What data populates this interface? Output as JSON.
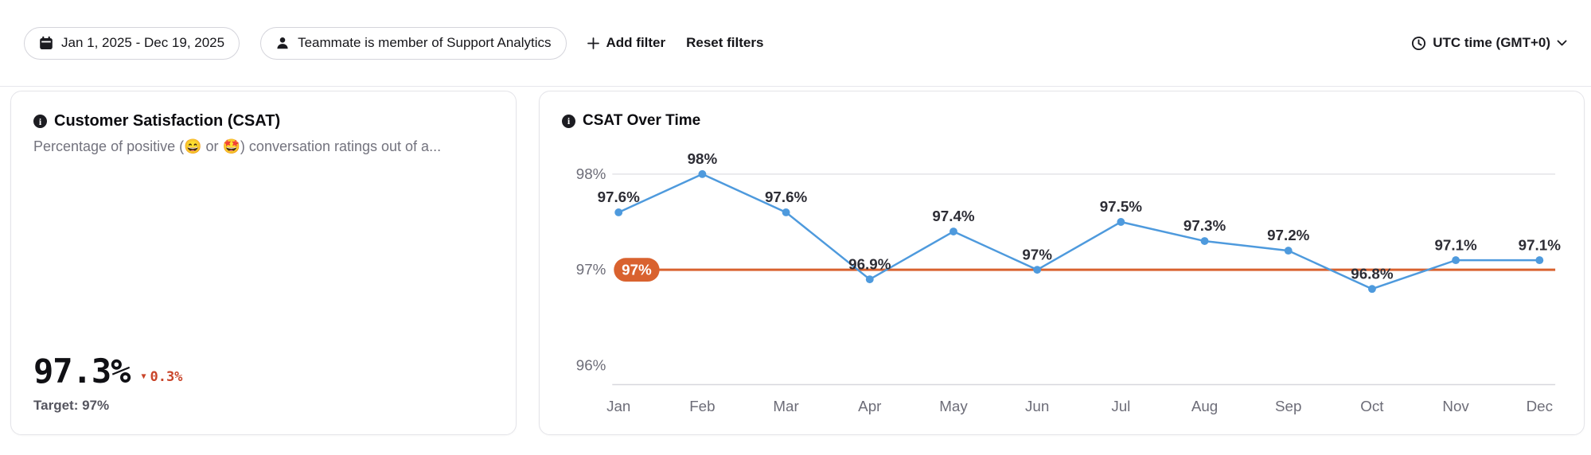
{
  "toolbar": {
    "date_range": "Jan 1, 2025 - Dec 19, 2025",
    "teammate_filter": "Teammate is member of Support Analytics",
    "add_filter_label": "Add filter",
    "reset_filters_label": "Reset filters",
    "timezone_label": "UTC time (GMT+0)"
  },
  "csat_card": {
    "title": "Customer Satisfaction (CSAT)",
    "subtitle": "Percentage of positive (😄 or 🤩) conversation ratings out of a...",
    "value": "97.3%",
    "delta": "0.3%",
    "delta_direction": "down",
    "delta_color": "#c9452a",
    "target_label": "Target: 97%"
  },
  "chart_card": {
    "title": "CSAT Over Time"
  },
  "chart_data": {
    "type": "line",
    "title": "CSAT Over Time",
    "categories": [
      "Jan",
      "Feb",
      "Mar",
      "Apr",
      "May",
      "Jun",
      "Jul",
      "Aug",
      "Sep",
      "Oct",
      "Nov",
      "Dec"
    ],
    "values": [
      97.6,
      98,
      97.6,
      96.9,
      97.4,
      97,
      97.5,
      97.3,
      97.2,
      96.8,
      97.1,
      97.1
    ],
    "labels": [
      "97.6%",
      "98%",
      "97.6%",
      "96.9%",
      "97.4%",
      "97%",
      "97.5%",
      "97.3%",
      "97.2%",
      "96.8%",
      "97.1%",
      "97.1%"
    ],
    "yticks": [
      96,
      97,
      98
    ],
    "ytick_labels": [
      "96%",
      "97%",
      "98%"
    ],
    "ylim": [
      95.8,
      98.25
    ],
    "target": 97,
    "target_label": "97%",
    "line_color": "#4e9add",
    "target_color": "#d9622f",
    "grid": "horizontal",
    "legend": "none"
  }
}
